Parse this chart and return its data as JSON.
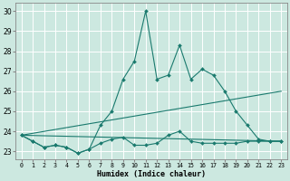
{
  "xlabel": "Humidex (Indice chaleur)",
  "bg_color": "#cce8e0",
  "line_color": "#1a7a6e",
  "grid_color": "#ffffff",
  "xlim": [
    -0.5,
    23.5
  ],
  "ylim": [
    22.6,
    30.4
  ],
  "yticks": [
    23,
    24,
    25,
    26,
    27,
    28,
    29,
    30
  ],
  "xticks": [
    0,
    1,
    2,
    3,
    4,
    5,
    6,
    7,
    8,
    9,
    10,
    11,
    12,
    13,
    14,
    15,
    16,
    17,
    18,
    19,
    20,
    21,
    22,
    23
  ],
  "lines": [
    {
      "x": [
        0,
        1,
        2,
        3,
        4,
        5,
        6,
        7,
        8,
        9,
        10,
        11,
        12,
        13,
        14,
        15,
        16,
        17,
        18,
        19,
        20,
        21,
        22,
        23
      ],
      "y": [
        23.8,
        23.5,
        23.2,
        23.3,
        23.2,
        22.9,
        23.1,
        24.3,
        25.0,
        26.6,
        27.5,
        30.0,
        26.6,
        26.8,
        28.3,
        26.6,
        27.1,
        26.8,
        26.0,
        25.0,
        24.3,
        23.6,
        23.5,
        23.5
      ],
      "markers": true,
      "straight": false
    },
    {
      "x": [
        0,
        1,
        2,
        3,
        4,
        5,
        6,
        7,
        8,
        9,
        10,
        11,
        12,
        13,
        14,
        15,
        16,
        17,
        18,
        19,
        20,
        21,
        22,
        23
      ],
      "y": [
        23.8,
        23.5,
        23.2,
        23.3,
        23.2,
        22.9,
        23.1,
        23.4,
        23.6,
        23.7,
        23.3,
        23.3,
        23.4,
        23.8,
        24.0,
        23.5,
        23.4,
        23.4,
        23.4,
        23.4,
        23.5,
        23.5,
        23.5,
        23.5
      ],
      "markers": true,
      "straight": false
    },
    {
      "x": [
        0,
        23
      ],
      "y": [
        23.8,
        26.0
      ],
      "markers": false,
      "straight": true
    },
    {
      "x": [
        0,
        23
      ],
      "y": [
        23.8,
        23.5
      ],
      "markers": false,
      "straight": true
    }
  ],
  "figsize": [
    3.2,
    2.0
  ],
  "dpi": 100
}
